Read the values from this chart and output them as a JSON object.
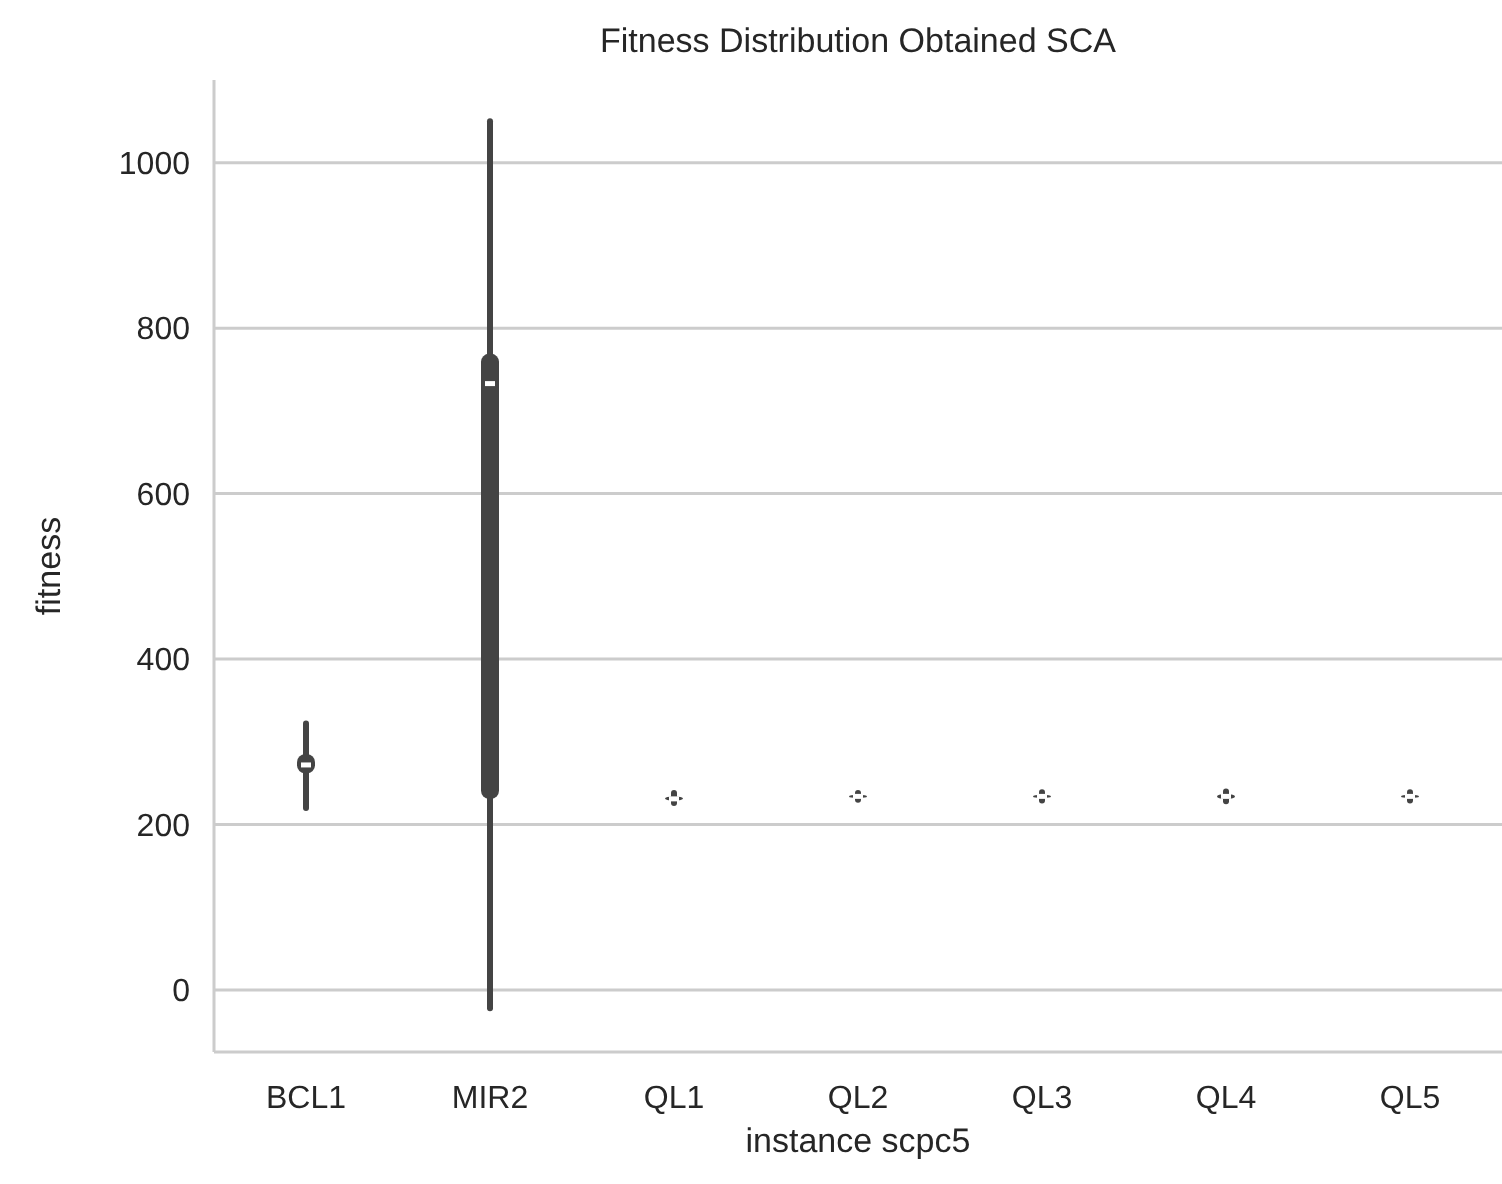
{
  "chart_data": {
    "type": "box",
    "title": "Fitness Distribution Obtained SCA",
    "xlabel": "instance scpc5",
    "ylabel": "fitness",
    "categories": [
      "BCL1",
      "MIR2",
      "QL1",
      "QL2",
      "QL3",
      "QL4",
      "QL5"
    ],
    "series": [
      {
        "color": "#444444",
        "boxes": [
          {
            "low": 220,
            "q1": 262,
            "median": 272,
            "q3": 285,
            "high": 322
          },
          {
            "low": -22,
            "q1": 231,
            "median": 733,
            "q3": 769,
            "high": 1050
          },
          {
            "low": 226,
            "q1": 229,
            "median": 231,
            "q3": 234,
            "high": 238
          },
          {
            "low": 230,
            "q1": 232,
            "median": 234,
            "q3": 236,
            "high": 238
          },
          {
            "low": 229,
            "q1": 232,
            "median": 234,
            "q3": 236,
            "high": 239
          },
          {
            "low": 228,
            "q1": 231,
            "median": 234,
            "q3": 237,
            "high": 240
          },
          {
            "low": 229,
            "q1": 232,
            "median": 234,
            "q3": 236,
            "high": 239
          }
        ]
      }
    ],
    "ylim": [
      -75,
      1100
    ],
    "yticks": [
      0,
      200,
      400,
      600,
      800,
      1000
    ],
    "grid": "y"
  }
}
